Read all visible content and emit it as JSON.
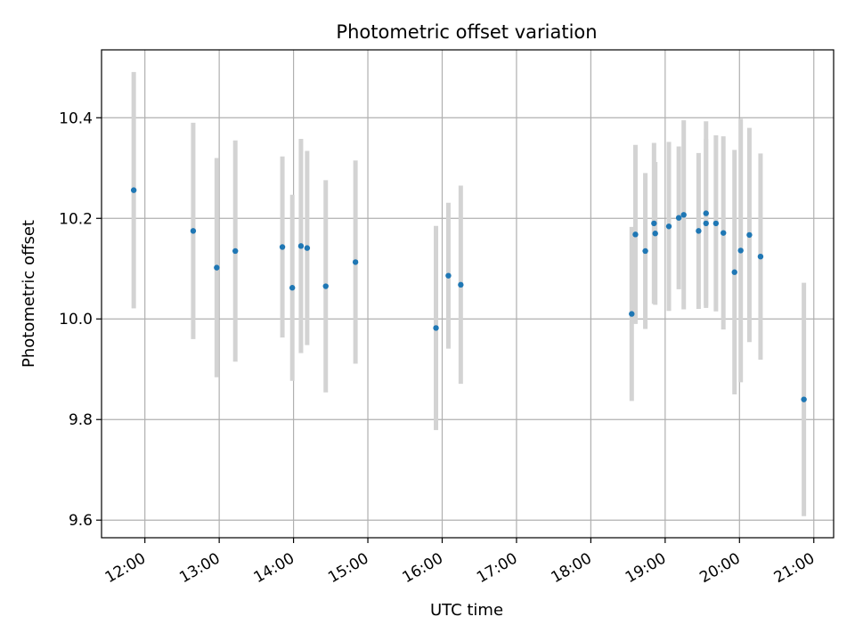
{
  "chart_data": {
    "type": "scatter",
    "title": "Photometric offset variation",
    "xlabel": "UTC time",
    "ylabel": "Photometric offset",
    "x_unit": "hours (UTC)",
    "xlim": [
      "11:25",
      "21:16"
    ],
    "ylim": [
      9.565,
      10.535
    ],
    "grid": true,
    "colors": {
      "point": "#1f77b4",
      "errorbar": "#d3d3d3",
      "grid": "#b0b0b0"
    },
    "x_ticks": [
      {
        "time": "12:00",
        "label": "12:00"
      },
      {
        "time": "13:00",
        "label": "13:00"
      },
      {
        "time": "14:00",
        "label": "14:00"
      },
      {
        "time": "15:00",
        "label": "15:00"
      },
      {
        "time": "16:00",
        "label": "16:00"
      },
      {
        "time": "17:00",
        "label": "17:00"
      },
      {
        "time": "18:00",
        "label": "18:00"
      },
      {
        "time": "19:00",
        "label": "19:00"
      },
      {
        "time": "20:00",
        "label": "20:00"
      },
      {
        "time": "21:00",
        "label": "21:00"
      }
    ],
    "y_ticks": [
      {
        "value": 9.6,
        "label": "9.6"
      },
      {
        "value": 9.8,
        "label": "9.8"
      },
      {
        "value": 10.0,
        "label": "10.0"
      },
      {
        "value": 10.2,
        "label": "10.2"
      },
      {
        "value": 10.4,
        "label": "10.4"
      }
    ],
    "points": [
      {
        "x": "11:51",
        "y": 10.256,
        "err": 0.235
      },
      {
        "x": "12:39",
        "y": 10.175,
        "err": 0.215
      },
      {
        "x": "12:58",
        "y": 10.102,
        "err": 0.218
      },
      {
        "x": "13:13",
        "y": 10.135,
        "err": 0.22
      },
      {
        "x": "13:51",
        "y": 10.143,
        "err": 0.18
      },
      {
        "x": "13:59",
        "y": 10.062,
        "err": 0.185
      },
      {
        "x": "14:06",
        "y": 10.145,
        "err": 0.213
      },
      {
        "x": "14:11",
        "y": 10.141,
        "err": 0.193
      },
      {
        "x": "14:26",
        "y": 10.065,
        "err": 0.211
      },
      {
        "x": "14:50",
        "y": 10.113,
        "err": 0.202
      },
      {
        "x": "15:55",
        "y": 9.982,
        "err": 0.203
      },
      {
        "x": "16:05",
        "y": 10.086,
        "err": 0.145
      },
      {
        "x": "16:15",
        "y": 10.068,
        "err": 0.197
      },
      {
        "x": "18:33",
        "y": 10.01,
        "err": 0.173
      },
      {
        "x": "18:36",
        "y": 10.168,
        "err": 0.178
      },
      {
        "x": "18:44",
        "y": 10.135,
        "err": 0.155
      },
      {
        "x": "18:51",
        "y": 10.19,
        "err": 0.16
      },
      {
        "x": "18:52",
        "y": 10.17,
        "err": 0.142
      },
      {
        "x": "19:03",
        "y": 10.184,
        "err": 0.168
      },
      {
        "x": "19:11",
        "y": 10.201,
        "err": 0.142
      },
      {
        "x": "19:15",
        "y": 10.207,
        "err": 0.188
      },
      {
        "x": "19:27",
        "y": 10.175,
        "err": 0.155
      },
      {
        "x": "19:33",
        "y": 10.21,
        "err": 0.183
      },
      {
        "x": "19:33",
        "y": 10.19,
        "err": 0.168
      },
      {
        "x": "19:41",
        "y": 10.19,
        "err": 0.175
      },
      {
        "x": "19:47",
        "y": 10.171,
        "err": 0.192
      },
      {
        "x": "19:56",
        "y": 10.093,
        "err": 0.243
      },
      {
        "x": "20:01",
        "y": 10.136,
        "err": 0.262
      },
      {
        "x": "20:08",
        "y": 10.167,
        "err": 0.213
      },
      {
        "x": "20:17",
        "y": 10.124,
        "err": 0.205
      },
      {
        "x": "20:52",
        "y": 9.84,
        "err": 0.232
      }
    ]
  }
}
